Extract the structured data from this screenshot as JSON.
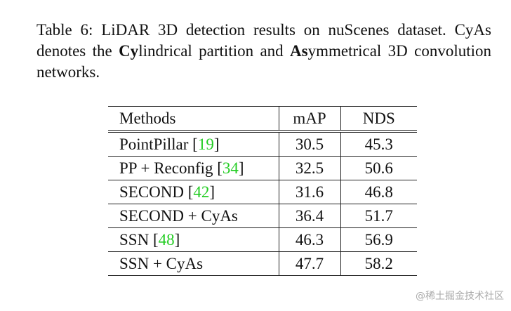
{
  "caption": [
    {
      "text": "Table 6: LiDAR 3D detection results on nuScenes dataset. CyAs denotes the ",
      "bold": false
    },
    {
      "text": "Cy",
      "bold": true
    },
    {
      "text": "lindrical partition and ",
      "bold": false
    },
    {
      "text": "As",
      "bold": true
    },
    {
      "text": "ymmetrical 3D convolution networks.",
      "bold": false
    }
  ],
  "table": {
    "header": [
      "Methods",
      "mAP",
      "NDS"
    ],
    "rows": [
      {
        "method": [
          {
            "text": "PointPillar [",
            "link": false
          },
          {
            "text": "19",
            "link": true
          },
          {
            "text": "]",
            "link": false
          }
        ],
        "mAP": 30.5,
        "NDS": 45.3
      },
      {
        "method": [
          {
            "text": "PP + Reconfig [",
            "link": false
          },
          {
            "text": "34",
            "link": true
          },
          {
            "text": "]",
            "link": false
          }
        ],
        "mAP": 32.5,
        "NDS": 50.6
      },
      {
        "method": [
          {
            "text": "SECOND [",
            "link": false
          },
          {
            "text": "42",
            "link": true
          },
          {
            "text": "]",
            "link": false
          }
        ],
        "mAP": 31.6,
        "NDS": 46.8
      },
      {
        "method": [
          {
            "text": "SECOND + CyAs",
            "link": false
          }
        ],
        "mAP": 36.4,
        "NDS": 51.7
      },
      {
        "method": [
          {
            "text": "SSN [",
            "link": false
          },
          {
            "text": "48",
            "link": true
          },
          {
            "text": "]",
            "link": false
          }
        ],
        "mAP": 46.3,
        "NDS": 56.9
      },
      {
        "method": [
          {
            "text": "SSN + CyAs",
            "link": false
          }
        ],
        "mAP": 47.7,
        "NDS": 58.2
      }
    ]
  },
  "watermark": "@稀土掘金技术社区"
}
